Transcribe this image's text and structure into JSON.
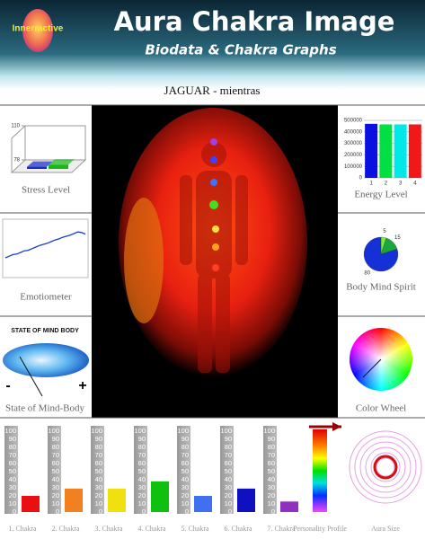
{
  "header": {
    "logo": "Innerractive",
    "title": "Aura Chakra Image",
    "subtitle": "Biodata & Chakra Graphs"
  },
  "subject": "JAGUAR - mientras",
  "stress_level": {
    "type": "bar3d",
    "label": "Stress Level",
    "ylim": [
      78,
      110
    ],
    "yticks": [
      78,
      110
    ],
    "series": [
      {
        "color": "#1428c8",
        "values": [
          80
        ]
      },
      {
        "color": "#18b818",
        "values": [
          82
        ]
      }
    ]
  },
  "energy_level": {
    "type": "bar",
    "label": "Energy Level",
    "categories": [
      "1",
      "2",
      "3",
      "4"
    ],
    "values": [
      470000,
      465000,
      465000,
      465000
    ],
    "colors": [
      "#0a10e0",
      "#00e040",
      "#00e8e8",
      "#f01818"
    ],
    "ylim": [
      0,
      500000
    ],
    "yticks": [
      0,
      100000,
      200000,
      300000,
      400000,
      500000
    ],
    "grid": true
  },
  "emotiometer": {
    "type": "line",
    "label": "Emotiometer",
    "color": "#1a3cd0",
    "ylim": [
      0,
      100
    ],
    "values": [
      30,
      33,
      36,
      37,
      40,
      43,
      44,
      47,
      50,
      53,
      55,
      57,
      60,
      63,
      65,
      68,
      70,
      72,
      75,
      78,
      77,
      74
    ]
  },
  "body_mind_spirit": {
    "type": "pie",
    "label": "Body Mind Spirit",
    "values": [
      5,
      15,
      80
    ],
    "colors": [
      "#7cf03c",
      "#1aa83c",
      "#1630d8"
    ]
  },
  "state_of_mind": {
    "title": "STATE OF MIND BODY",
    "minus": "-",
    "plus": "+",
    "label": "State of Mind-Body"
  },
  "color_wheel": {
    "label": "Color Wheel"
  },
  "chakras": {
    "type": "bar",
    "ylim": [
      0,
      100
    ],
    "yticks": [
      0,
      10,
      20,
      30,
      40,
      50,
      60,
      70,
      80,
      90,
      100
    ],
    "items": [
      {
        "name": "1. Chakra",
        "value": 20,
        "color": "#e81010"
      },
      {
        "name": "2. Chakra",
        "value": 29,
        "color": "#f08020"
      },
      {
        "name": "3. Chakra",
        "value": 29,
        "color": "#f0e010"
      },
      {
        "name": "4. Chakra",
        "value": 38,
        "color": "#10c010"
      },
      {
        "name": "5. Chakra",
        "value": 20,
        "color": "#4070f0"
      },
      {
        "name": "6. Chakra",
        "value": 29,
        "color": "#1010c0"
      },
      {
        "name": "7. Chakra",
        "value": 13,
        "color": "#9030c0"
      }
    ]
  },
  "personality_profile": {
    "label": "Personality Profile"
  },
  "aura_size": {
    "label": "Aura Size"
  }
}
